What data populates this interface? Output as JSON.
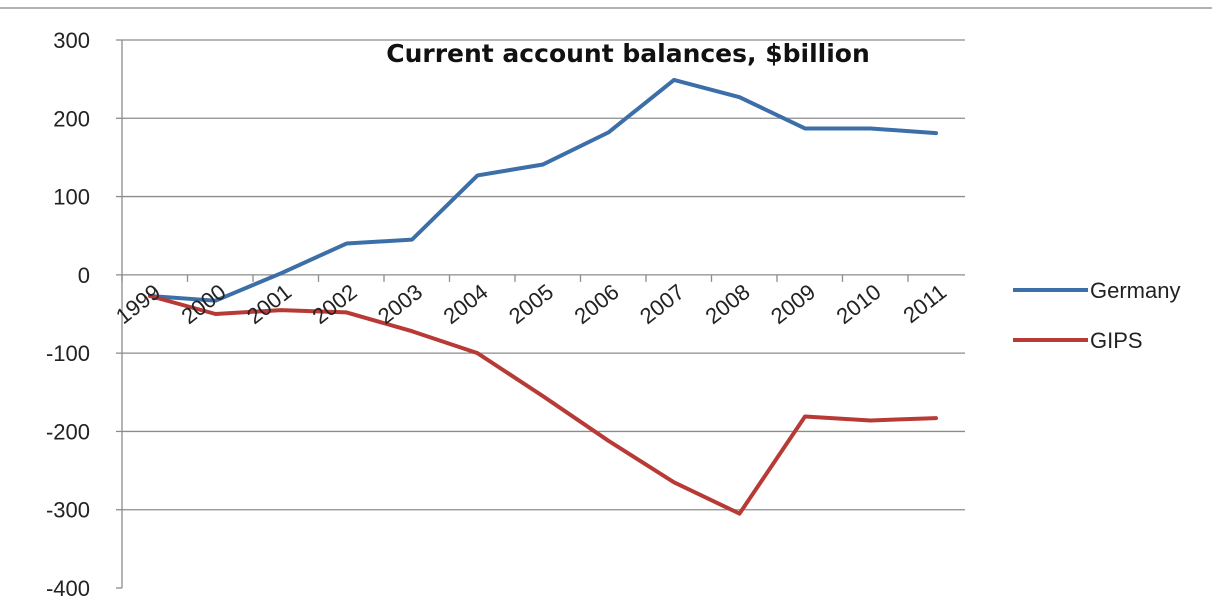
{
  "chart_data": {
    "type": "line",
    "title": "Current account balances, $billion",
    "xlabel": "",
    "ylabel": "",
    "ylim": [
      -400,
      300
    ],
    "yticks": [
      300,
      200,
      100,
      0,
      -100,
      -200,
      -300,
      -400
    ],
    "categories": [
      "1999",
      "2000",
      "2001",
      "2002",
      "2003",
      "2004",
      "2005",
      "2006",
      "2007",
      "2008",
      "2009",
      "2010",
      "2011"
    ],
    "grid": true,
    "legend_position": "right",
    "series": [
      {
        "name": "Germany",
        "color": "#3c6fa8",
        "values": [
          -27,
          -33,
          2,
          40,
          45,
          127,
          141,
          182,
          249,
          227,
          187,
          187,
          181
        ]
      },
      {
        "name": "GIPS",
        "color": "#b83a36",
        "values": [
          -27,
          -50,
          -45,
          -48,
          -72,
          -100,
          -155,
          -212,
          -265,
          -305,
          -181,
          -186,
          -183
        ]
      }
    ]
  }
}
